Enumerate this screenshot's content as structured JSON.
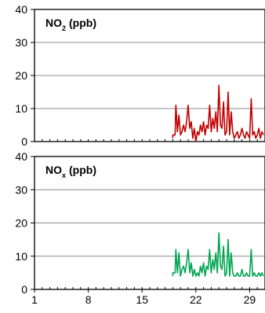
{
  "chart_data": [
    {
      "type": "line",
      "title": "NO2 (ppb)",
      "title_main": "NO",
      "title_sub": "2",
      "title_unit": "(ppb)",
      "ylim": [
        0,
        40
      ],
      "yticks": [
        0,
        10,
        20,
        30,
        40
      ],
      "xlim": [
        1,
        31
      ],
      "grid": true,
      "color": "#c00000",
      "x": [
        19.0,
        19.0,
        19.3,
        19.4,
        19.6,
        19.8,
        20.0,
        20.2,
        20.4,
        20.6,
        20.8,
        21.0,
        21.2,
        21.4,
        21.6,
        21.8,
        22.0,
        22.2,
        22.4,
        22.6,
        22.8,
        23.0,
        23.2,
        23.4,
        23.6,
        23.8,
        24.0,
        24.2,
        24.4,
        24.6,
        24.8,
        25.0,
        25.2,
        25.4,
        25.6,
        25.8,
        26.0,
        26.2,
        26.4,
        26.6,
        26.8,
        27.0,
        27.2,
        27.4,
        27.6,
        27.8,
        28.0,
        28.2,
        28.4,
        28.6,
        28.8,
        29.0,
        29.2,
        29.4,
        29.6,
        29.8,
        30.0,
        30.2,
        30.4,
        30.6,
        30.8
      ],
      "values": [
        1,
        2,
        2,
        11,
        3,
        8,
        2,
        3,
        5,
        3,
        6,
        11,
        4,
        6,
        1,
        4,
        0,
        3,
        2,
        5,
        3,
        6,
        2,
        5,
        4,
        11,
        3,
        7,
        4,
        9,
        3,
        17,
        5,
        4,
        12,
        2,
        3,
        15,
        2,
        9,
        3,
        1,
        2,
        3,
        1,
        2,
        4,
        2,
        1,
        3,
        2,
        1,
        13,
        2,
        3,
        1,
        2,
        4,
        1,
        3,
        2
      ]
    },
    {
      "type": "line",
      "title": "NOx (ppb)",
      "title_main": "NO",
      "title_sub": "x",
      "title_unit": "(ppb)",
      "ylim": [
        0,
        40
      ],
      "yticks": [
        0,
        10,
        20,
        30,
        40
      ],
      "xlim": [
        1,
        31
      ],
      "xticks": [
        1,
        8,
        15,
        22,
        29
      ],
      "grid": true,
      "color": "#00a550",
      "x": [
        19.0,
        19.0,
        19.3,
        19.4,
        19.6,
        19.8,
        20.0,
        20.2,
        20.4,
        20.6,
        20.8,
        21.0,
        21.2,
        21.4,
        21.6,
        21.8,
        22.0,
        22.2,
        22.4,
        22.6,
        22.8,
        23.0,
        23.2,
        23.4,
        23.6,
        23.8,
        24.0,
        24.2,
        24.4,
        24.6,
        24.8,
        25.0,
        25.2,
        25.4,
        25.6,
        25.8,
        26.0,
        26.2,
        26.4,
        26.6,
        26.8,
        27.0,
        27.2,
        27.4,
        27.6,
        27.8,
        28.0,
        28.2,
        28.4,
        28.6,
        28.8,
        29.0,
        29.2,
        29.4,
        29.6,
        29.8,
        30.0,
        30.2,
        30.4,
        30.6,
        30.8
      ],
      "values": [
        4,
        5,
        5,
        12,
        5,
        11,
        4,
        6,
        7,
        5,
        8,
        12,
        5,
        8,
        4,
        6,
        4,
        5,
        4,
        7,
        5,
        8,
        4,
        7,
        6,
        12,
        5,
        9,
        6,
        11,
        5,
        17,
        7,
        6,
        13,
        4,
        5,
        15,
        4,
        11,
        5,
        4,
        4,
        5,
        4,
        4,
        6,
        4,
        4,
        5,
        4,
        4,
        12,
        4,
        5,
        4,
        4,
        5,
        4,
        5,
        4
      ]
    }
  ]
}
